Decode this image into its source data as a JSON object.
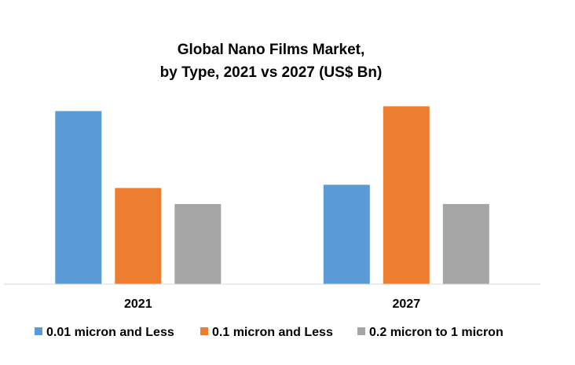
{
  "chart_data": {
    "type": "bar",
    "title_lines": [
      "Global Nano Films Market,",
      "by Type, 2021 vs 2027 (US$ Bn)"
    ],
    "categories": [
      "2021",
      "2027"
    ],
    "series": [
      {
        "name": "0.01 micron and Less",
        "color": "#5B9BD5",
        "values": [
          5.4,
          3.1
        ]
      },
      {
        "name": "0.1 micron and Less",
        "color": "#ED7D31",
        "values": [
          3.0,
          5.55
        ]
      },
      {
        "name": "0.2 micron to 1 micron",
        "color": "#A5A5A5",
        "values": [
          2.5,
          2.5
        ]
      }
    ],
    "ylim": [
      0,
      6
    ],
    "grid": false,
    "legend_position": "bottom"
  }
}
